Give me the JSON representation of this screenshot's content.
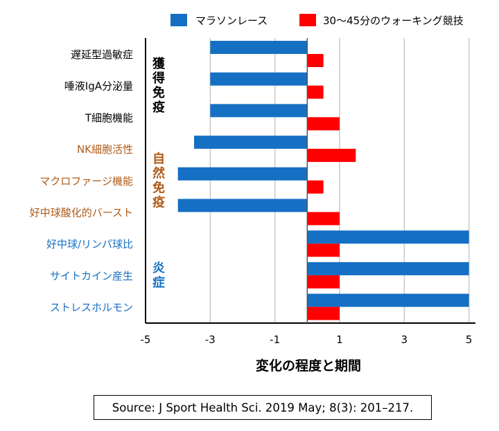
{
  "chart_data": {
    "type": "bar",
    "orientation": "horizontal",
    "title": "",
    "xlabel": "変化の程度と期間",
    "ylabel": "",
    "xlim": [
      -5,
      5.2
    ],
    "xticks": [
      -5,
      -3,
      -1,
      1,
      3,
      5
    ],
    "grid": "vertical",
    "legend": "top",
    "series": [
      {
        "name": "マラソンレース",
        "color": "#1570c4",
        "values": [
          -3,
          -3,
          -3,
          -3.5,
          -4,
          -4,
          5,
          5,
          5
        ]
      },
      {
        "name": "30～45分のウォーキング競技",
        "color": "#ff0000",
        "values": [
          0.5,
          0.5,
          1,
          1.5,
          0.5,
          1,
          1,
          1,
          1
        ]
      }
    ],
    "categories": [
      "遅延型過敏症",
      "唾液IgA分泌量",
      "T細胞機能",
      "NK細胞活性",
      "マクロファージ機能",
      "好中球酸化的バースト",
      "好中球/リンパ球比",
      "サイトカイン産生",
      "ストレスホルモン"
    ],
    "category_colors": [
      "#000000",
      "#000000",
      "#000000",
      "#b05a17",
      "#b05a17",
      "#b05a17",
      "#1570c4",
      "#1570c4",
      "#1570c4"
    ],
    "groups": [
      {
        "label": "獲得免疫",
        "color": "#000000",
        "start": 0,
        "end": 2
      },
      {
        "label": "自然免疫",
        "color": "#b05a17",
        "start": 3,
        "end": 5
      },
      {
        "label": "炎症",
        "color": "#1570c4",
        "start": 6,
        "end": 8
      }
    ]
  },
  "source": "Source: J Sport Health Sci. 2019 May; 8(3): 201–217."
}
